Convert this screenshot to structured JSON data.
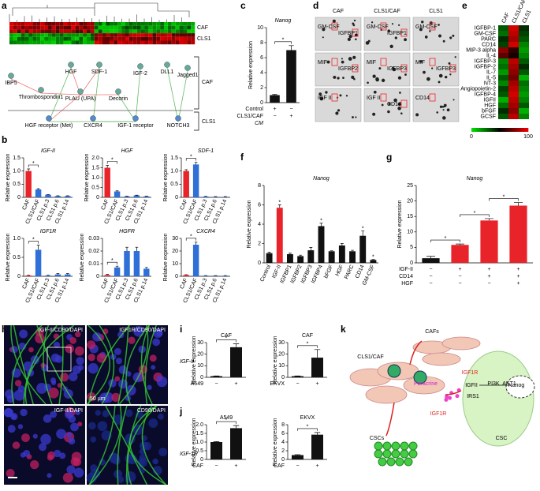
{
  "panel_labels": [
    "a",
    "b",
    "c",
    "d",
    "e",
    "f",
    "g",
    "h",
    "i",
    "j",
    "k"
  ],
  "heatmap_a": {
    "row_labels": [
      "CAF",
      "CLS1"
    ]
  },
  "network_a": {
    "groups": [
      "CAF",
      "CLS1"
    ],
    "nodes": [
      "IBP5",
      "Thrombospondin1",
      "HGF",
      "SDF-1",
      "PLAU (UPA)",
      "Decorin",
      "IGF-2",
      "DLL1",
      "Jagged1",
      "HGF receptor (Met)",
      "CXCR4",
      "IGF-1 receptor",
      "NOTCH3"
    ]
  },
  "arrays_d": {
    "columns": [
      "CAF",
      "CLS1/CAF",
      "CLS1"
    ],
    "spots": [
      [
        [
          "GM-CSF",
          "IGFBP1"
        ],
        [
          "MIF",
          "IGFBP2"
        ],
        [
          "IGF II"
        ]
      ],
      [
        [
          "GM-CSF",
          "IGFBP1"
        ],
        [
          "MIF",
          "IGFBP3"
        ],
        [
          "IGF II",
          "CD14"
        ]
      ],
      [
        [
          "GM-CSF"
        ],
        [
          "MIF",
          "IGFBP3"
        ],
        [
          "CD14"
        ]
      ]
    ]
  },
  "micrographs_h": {
    "labels": [
      "IGF-II/CD90/DAPI",
      "IGF1R/CD90/DAPI",
      "IGF-II/DAPI",
      "CD90/DAPI"
    ],
    "scale": "50 µm"
  },
  "row_labels_ij": [
    "IGF-II",
    "IGF-1R"
  ],
  "diagram_k": {
    "labels": [
      "CLS1/CAF",
      "CAFs",
      "Paracrine",
      "CSCs",
      "IGFII",
      "IGF1R",
      "IRS1",
      "PI3K",
      "AKT1",
      "Nanog",
      "CSC",
      "IGF1R"
    ]
  },
  "chart_data": [
    {
      "type": "bar",
      "title": "IGF-II",
      "y_label": "Relative expression",
      "categories": [
        "CAF",
        "CLS1/CAF",
        "CLS1 p.3",
        "CLS1 p.6",
        "CLS1 p.14"
      ],
      "values": [
        1,
        0.3,
        0.1,
        0.05,
        0.05
      ],
      "errors": [
        0.08,
        0.03,
        0.01,
        0.01,
        0.01
      ],
      "colors": [
        "#e8232a",
        "#2f6fd8",
        "#2f6fd8",
        "#2f6fd8",
        "#2f6fd8"
      ],
      "ylim": [
        0,
        1.5
      ],
      "yticks": [
        0,
        0.5,
        {
          "value": 1,
          "label": "1.0"
        },
        1.5
      ],
      "annotations": [
        {
          "text": "*"
        }
      ]
    },
    {
      "type": "bar",
      "title": "HGF",
      "y_label": "Relative expression",
      "categories": [
        "CAF",
        "CLS1/CAF",
        "CLS1 p.3",
        "CLS1 p.6",
        "CLS1 p.14"
      ],
      "values": [
        1.5,
        0.3,
        0.05,
        0.1,
        0.05
      ],
      "errors": [
        0.12,
        0.03,
        0.01,
        0.01,
        0.01
      ],
      "colors": [
        "#e8232a",
        "#2f6fd8",
        "#2f6fd8",
        "#2f6fd8",
        "#2f6fd8"
      ],
      "ylim": [
        0,
        2
      ],
      "yticks": [
        0,
        0.5,
        {
          "value": 1,
          "label": "1.0"
        },
        1.5,
        {
          "value": 2,
          "label": "2.0"
        }
      ],
      "annotations": [
        {
          "text": "*"
        }
      ]
    },
    {
      "type": "bar",
      "title": "SDF-1",
      "y_label": "Relative expression",
      "categories": [
        "CAF",
        "CLS1/CAF",
        "CLS1 p.3",
        "CLS1 p.6",
        "CLS1 p.14"
      ],
      "values": [
        1,
        1.25,
        0.03,
        0.02,
        0.02
      ],
      "errors": [
        0.05,
        0.08,
        0.01,
        0.01,
        0.01
      ],
      "colors": [
        "#e8232a",
        "#2f6fd8",
        "#2f6fd8",
        "#2f6fd8",
        "#2f6fd8"
      ],
      "ylim": [
        0,
        1.5
      ],
      "yticks": [
        0,
        0.5,
        {
          "value": 1,
          "label": "1.0"
        },
        1.5
      ],
      "annotations": [
        {
          "text": "*"
        }
      ]
    },
    {
      "type": "bar",
      "title": "IGF1R",
      "y_label": "Relative expression",
      "categories": [
        "CAF",
        "CLS1/CAF",
        "CLS1 p.3",
        "CLS1 p.6",
        "CLS1 p.14"
      ],
      "values": [
        0.02,
        0.7,
        0.02,
        0.05,
        0.05
      ],
      "errors": [
        0.01,
        0.12,
        0.01,
        0.02,
        0.02
      ],
      "colors": [
        "#e8232a",
        "#2f6fd8",
        "#2f6fd8",
        "#2f6fd8",
        "#2f6fd8"
      ],
      "ylim": [
        0,
        1
      ],
      "yticks": [
        0,
        0.5,
        {
          "value": 1,
          "label": "1.0"
        }
      ],
      "annotations": [
        {
          "text": "*"
        }
      ]
    },
    {
      "type": "bar",
      "title": "HGFR",
      "y_label": "Relative expression",
      "categories": [
        "CAF",
        "CLS1/CAF",
        "CLS1 p.3",
        "CLS1 p.6",
        "CLS1 p.14"
      ],
      "values": [
        0.001,
        0.007,
        0.02,
        0.02,
        0.006
      ],
      "errors": [
        0.0005,
        0.001,
        0.003,
        0.003,
        0.001
      ],
      "colors": [
        "#e8232a",
        "#2f6fd8",
        "#2f6fd8",
        "#2f6fd8",
        "#2f6fd8"
      ],
      "ylim": [
        0,
        0.03
      ],
      "yticks": [
        0,
        0.01,
        0.02,
        0.03
      ],
      "annotations": [
        {
          "text": "*"
        }
      ]
    },
    {
      "type": "bar",
      "title": "CXCR4",
      "y_label": "Relative expression",
      "categories": [
        "CAF",
        "CLS1/CAF",
        "CLS1 p.3",
        "CLS1 p.6",
        "CLS1 p.14"
      ],
      "values": [
        1,
        25,
        0.5,
        0.5,
        0.5
      ],
      "errors": [
        0.3,
        2,
        0.1,
        0.1,
        0.1
      ],
      "colors": [
        "#e8232a",
        "#2f6fd8",
        "#2f6fd8",
        "#2f6fd8",
        "#2f6fd8"
      ],
      "ylim": [
        0,
        30
      ],
      "yticks": [
        0,
        10,
        20,
        30
      ],
      "annotations": [
        {
          "text": "*"
        }
      ]
    },
    {
      "type": "bar",
      "title": "Nanog",
      "y_label": "Relative expression",
      "categories": [
        null,
        null
      ],
      "values": [
        1,
        7
      ],
      "errors": [
        0.08,
        0.6
      ],
      "colors": [
        "#111111",
        "#111111"
      ],
      "ylim": [
        0,
        10
      ],
      "yticks": [
        0,
        2,
        4,
        6,
        8,
        10
      ],
      "conditions": [
        {
          "name": "Control",
          "marks": [
            "+",
            "−"
          ]
        },
        {
          "name": "CLS1/CAF",
          "marks": [
            "−",
            "+"
          ]
        }
      ],
      "condition_note": "CM",
      "annotations": [
        {
          "text": "*"
        }
      ]
    },
    {
      "type": "bar",
      "title": "Nanog",
      "y_label": "Relative expression",
      "categories": [
        "Control",
        "IGF-II",
        "IGFBP1",
        "IGFBP2",
        "IGFBP3",
        "IGFBP4",
        "bFGF",
        "HGF",
        "PARC",
        "CD14",
        "GM-CSF"
      ],
      "values": [
        1,
        5.7,
        0.9,
        0.7,
        1.3,
        3.8,
        1.2,
        1.8,
        1.2,
        2.8,
        0.3
      ],
      "errors": [
        0.1,
        0.3,
        0.1,
        0.1,
        0.3,
        0.3,
        0.05,
        0.2,
        0.1,
        0.5,
        0.05
      ],
      "colors": [
        "#111111",
        "#e8232a",
        "#111111",
        "#111111",
        "#111111",
        "#111111",
        "#111111",
        "#111111",
        "#111111",
        "#111111",
        "#111111"
      ],
      "ylim": [
        0,
        8
      ],
      "yticks": [
        0,
        2,
        4,
        6,
        8
      ],
      "annotations": [
        {
          "text": "*",
          "category": "IGF-II"
        },
        {
          "text": "*",
          "category": "IGFBP4"
        },
        {
          "text": "*",
          "category": "CD14"
        },
        {
          "text": "*",
          "category": "GM-CSF"
        }
      ]
    },
    {
      "type": "bar",
      "title": "Nanog",
      "y_label": "Relative expression",
      "categories": [
        null,
        null,
        null,
        null
      ],
      "values": [
        1.5,
        5.8,
        13.7,
        18.5
      ],
      "errors": [
        0.6,
        0.3,
        0.6,
        1
      ],
      "colors": [
        "#111111",
        "#e8232a",
        "#e8232a",
        "#e8232a"
      ],
      "ylim": [
        0,
        25
      ],
      "yticks": [
        0,
        5,
        10,
        15,
        20,
        25
      ],
      "conditions": [
        {
          "name": "IGF-II",
          "marks": [
            "−",
            "+",
            "+",
            "+"
          ]
        },
        {
          "name": "CD14",
          "marks": [
            "−",
            "−",
            "+",
            "+"
          ]
        },
        {
          "name": "HGF",
          "marks": [
            "−",
            "−",
            "−",
            "+"
          ]
        }
      ],
      "annotations": [
        {
          "text": "*"
        },
        {
          "text": "*"
        },
        {
          "text": "*"
        }
      ]
    },
    {
      "type": "bar",
      "title": "CAF",
      "y_label": "Relative expression",
      "categories": [
        null,
        null
      ],
      "values": [
        1,
        26
      ],
      "errors": [
        0.2,
        3
      ],
      "colors": [
        "#111111",
        "#111111"
      ],
      "ylim": [
        0,
        30
      ],
      "yticks": [
        0,
        10,
        20,
        30
      ],
      "conditions": [
        {
          "name": "A549",
          "marks": [
            "−",
            "+"
          ]
        }
      ],
      "annotations": [
        {
          "text": "*"
        }
      ]
    },
    {
      "type": "bar",
      "title": "CAF",
      "y_label": "Relative expression",
      "categories": [
        null,
        null
      ],
      "values": [
        1,
        17
      ],
      "errors": [
        0.2,
        7
      ],
      "colors": [
        "#111111",
        "#111111"
      ],
      "ylim": [
        0,
        30
      ],
      "yticks": [
        0,
        10,
        20,
        30
      ],
      "conditions": [
        {
          "name": "EKVX",
          "marks": [
            "−",
            "+"
          ]
        }
      ],
      "annotations": [
        {
          "text": "*"
        }
      ]
    },
    {
      "type": "bar",
      "title": "A549",
      "y_label": "Relative expression",
      "categories": [
        null,
        null
      ],
      "values": [
        1,
        1.8
      ],
      "errors": [
        0.03,
        0.15
      ],
      "colors": [
        "#111111",
        "#111111"
      ],
      "ylim": [
        0,
        2
      ],
      "yticks": [
        0,
        0.5,
        {
          "value": 1,
          "label": "1.0"
        },
        1.5,
        {
          "value": 2,
          "label": "2.0"
        }
      ],
      "conditions": [
        {
          "name": "CAF",
          "marks": [
            "−",
            "+"
          ]
        }
      ],
      "annotations": [
        {
          "text": "*"
        }
      ]
    },
    {
      "type": "bar",
      "title": "EKVX",
      "y_label": "Relative expression",
      "categories": [
        null,
        null
      ],
      "values": [
        1,
        5.7
      ],
      "errors": [
        0.1,
        0.5
      ],
      "colors": [
        "#111111",
        "#111111"
      ],
      "ylim": [
        0,
        8
      ],
      "yticks": [
        0,
        2,
        4,
        6,
        8
      ],
      "conditions": [
        {
          "name": "CAF",
          "marks": [
            "−",
            "+"
          ]
        }
      ],
      "annotations": [
        {
          "text": "*"
        }
      ]
    },
    {
      "type": "heatmap",
      "rows": [
        "IGFBP-1",
        "GM-CSF",
        "PARC",
        "CD14",
        "MIP-3 alpha",
        "IL-4",
        "IGFBP-3",
        "IGFBP-2",
        "IL-7",
        "IL-5",
        "NT-3",
        "Angiopoietin-2",
        "IGFBP-4",
        "IGFII",
        "HGF",
        "bFGF",
        "GCSF"
      ],
      "columns": [
        "CAF",
        "CLS1/CAF",
        "CLS1"
      ],
      "values": [
        [
          30,
          95,
          40
        ],
        [
          25,
          90,
          35
        ],
        [
          40,
          85,
          30
        ],
        [
          35,
          95,
          20
        ],
        [
          80,
          60,
          15
        ],
        [
          70,
          55,
          20
        ],
        [
          20,
          90,
          30
        ],
        [
          25,
          85,
          40
        ],
        [
          15,
          80,
          30
        ],
        [
          30,
          75,
          10
        ],
        [
          20,
          85,
          25
        ],
        [
          35,
          90,
          20
        ],
        [
          30,
          95,
          15
        ],
        [
          10,
          90,
          20
        ],
        [
          25,
          85,
          30
        ],
        [
          40,
          80,
          10
        ],
        [
          30,
          90,
          20
        ]
      ],
      "clim": [
        0,
        100
      ],
      "cticks": [
        0,
        100
      ]
    }
  ]
}
